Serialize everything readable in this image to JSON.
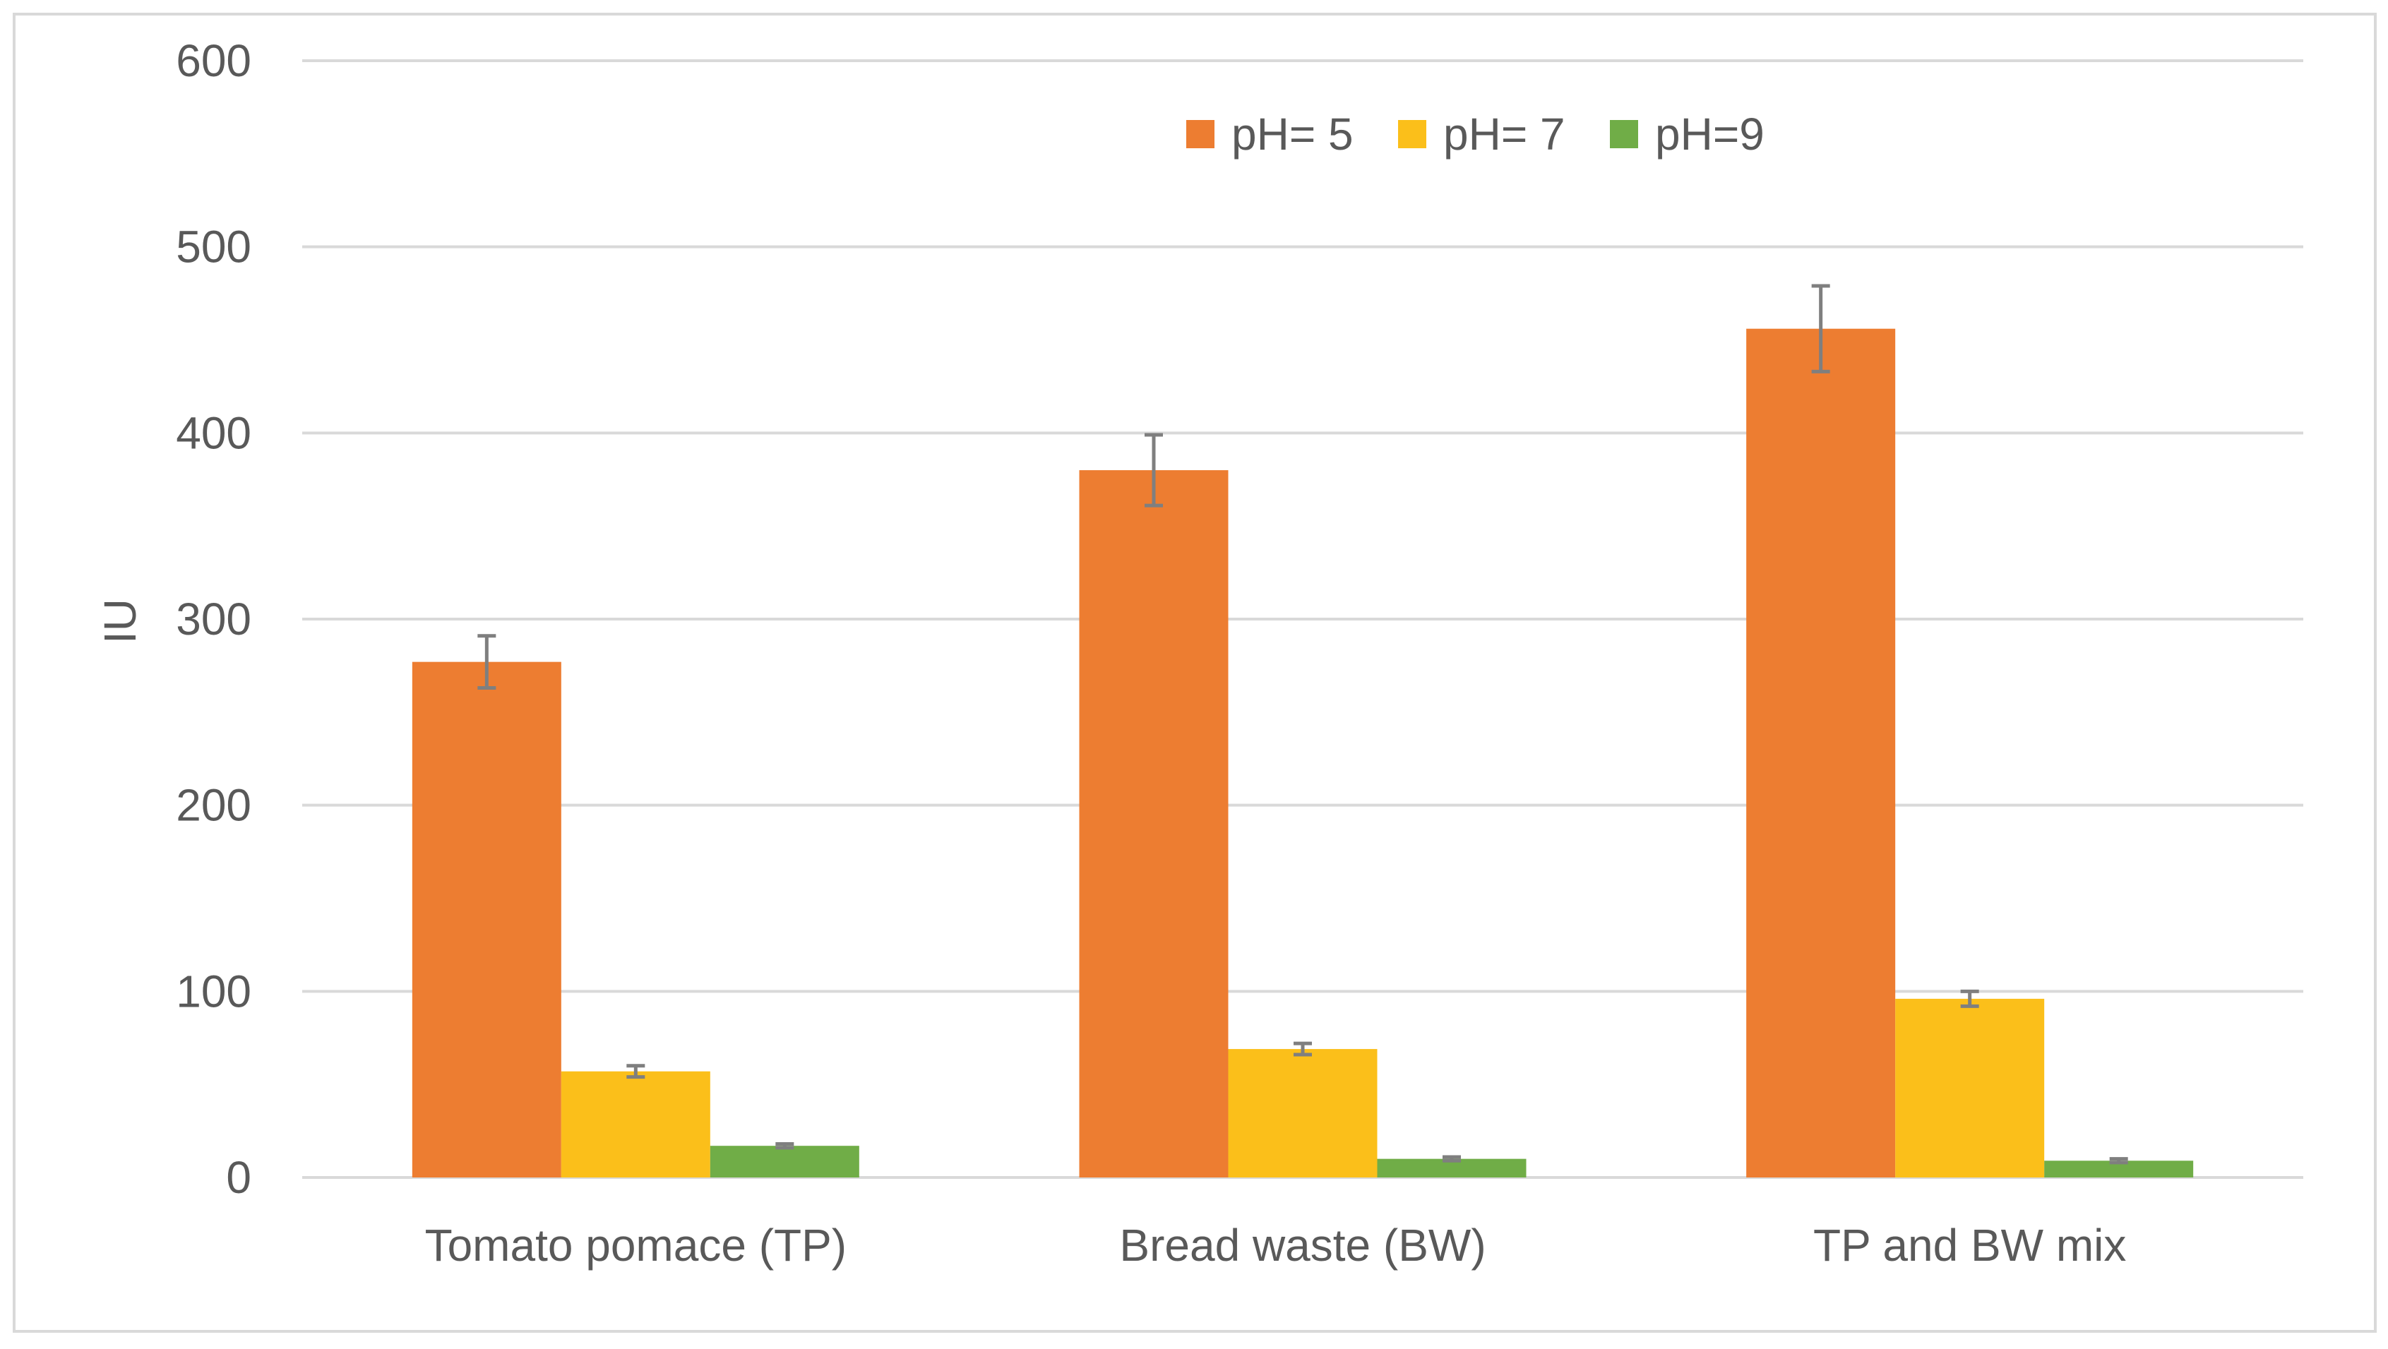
{
  "chart_data": {
    "type": "bar",
    "title": "",
    "xlabel": "",
    "ylabel": "IU",
    "ylim": [
      0,
      600
    ],
    "yticks": [
      0,
      100,
      200,
      300,
      400,
      500,
      600
    ],
    "grid": true,
    "legend_position": "top-right",
    "categories": [
      "Tomato pomace (TP)",
      "Bread waste (BW)",
      "TP and BW mix"
    ],
    "series": [
      {
        "name": "pH= 5",
        "color": "#ED7D31",
        "values": [
          277,
          380,
          456
        ],
        "errors": [
          14,
          19,
          23
        ]
      },
      {
        "name": "pH= 7",
        "color": "#FBBF1A",
        "values": [
          57,
          69,
          96
        ],
        "errors": [
          3,
          3,
          4
        ]
      },
      {
        "name": "pH=9",
        "color": "#70AD47",
        "values": [
          17,
          10,
          9
        ],
        "errors": [
          1,
          1,
          1
        ]
      }
    ],
    "colors": {
      "grid": "#D9D9D9",
      "axis_text": "#595959",
      "error_bar": "#7F7F7F",
      "border": "#D9D9D9"
    }
  }
}
